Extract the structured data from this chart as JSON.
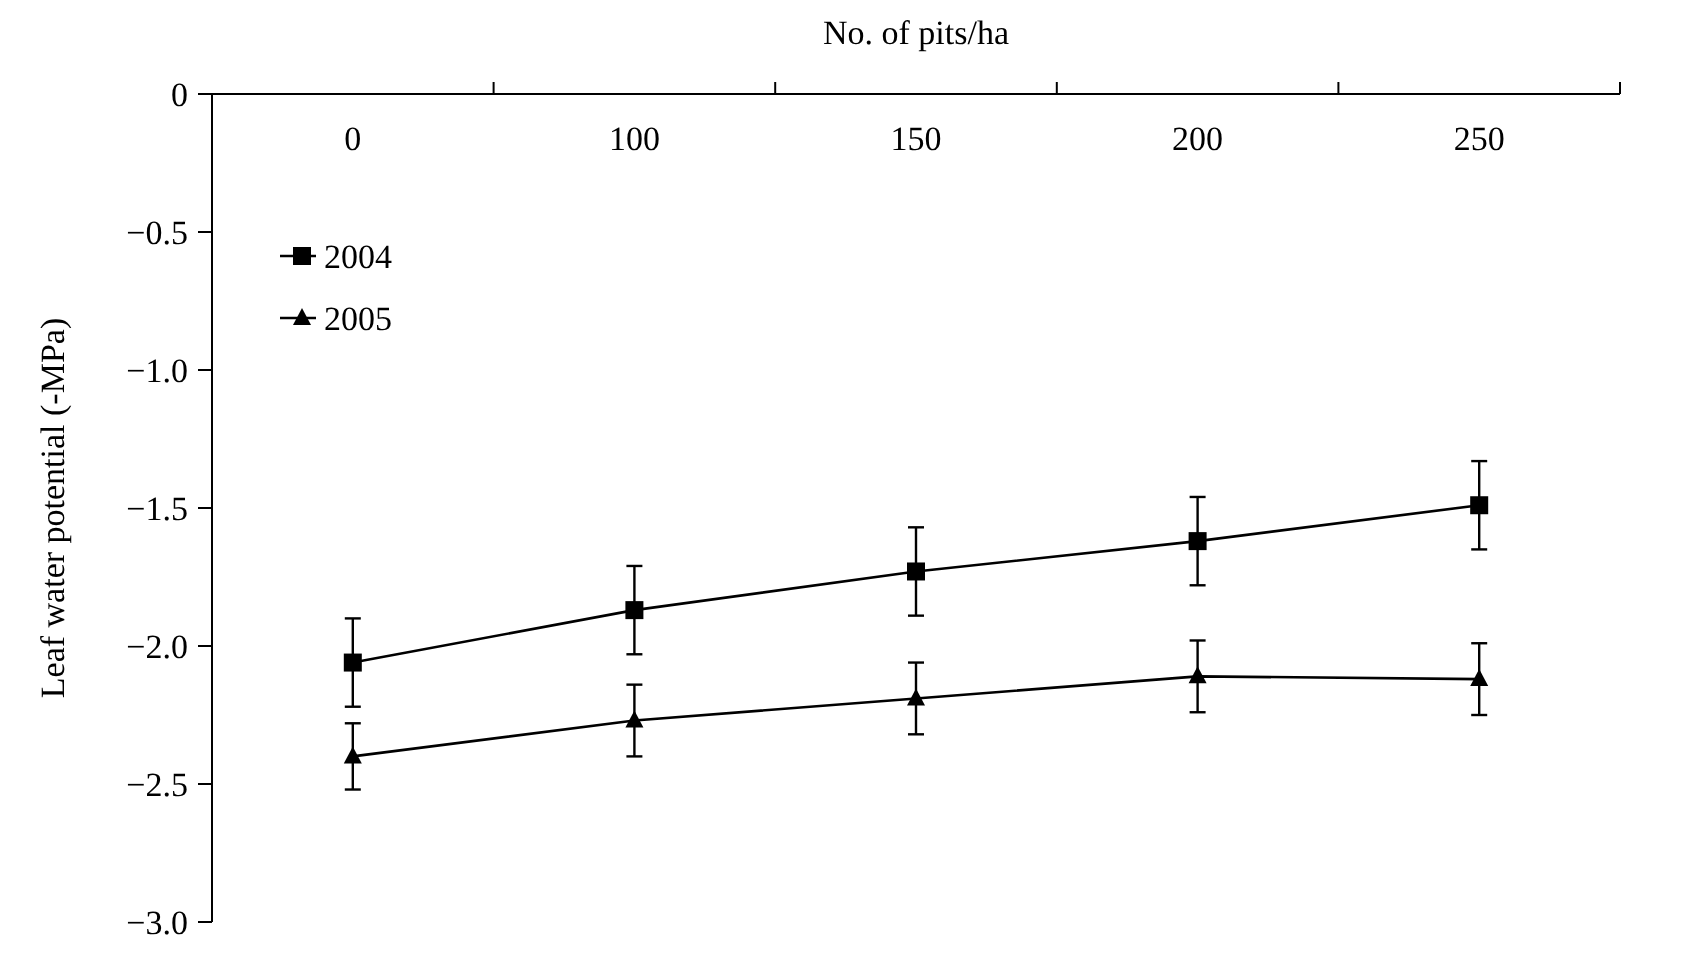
{
  "chart_data": {
    "type": "line",
    "xlabel": "No. of pits/ha",
    "ylabel": "Leaf water potential (-MPa)",
    "categories": [
      "0",
      "100",
      "150",
      "200",
      "250"
    ],
    "ylim": [
      -3,
      0
    ],
    "yticks": [
      0,
      {
        "value": -0.5,
        "label": "−0.5"
      },
      {
        "value": -1,
        "label": "−1.0"
      },
      {
        "value": -1.5,
        "label": "−1.5"
      },
      {
        "value": -2,
        "label": "−2.0"
      },
      {
        "value": -2.5,
        "label": "−2.5"
      },
      {
        "value": -3,
        "label": "−3.0"
      }
    ],
    "legend": "top left",
    "line_style": "solid",
    "series": [
      {
        "name": "2004",
        "color": "#000000",
        "marker": "square",
        "values": [
          -2.06,
          -1.87,
          -1.73,
          -1.62,
          -1.49
        ],
        "errors": [
          0.16,
          0.16,
          0.16,
          0.16,
          0.16
        ]
      },
      {
        "name": "2005",
        "color": "#000000",
        "marker": "triangle",
        "values": [
          -2.4,
          -2.27,
          -2.19,
          -2.11,
          -2.12
        ],
        "errors": [
          0.12,
          0.13,
          0.13,
          0.13,
          0.13
        ]
      }
    ]
  }
}
